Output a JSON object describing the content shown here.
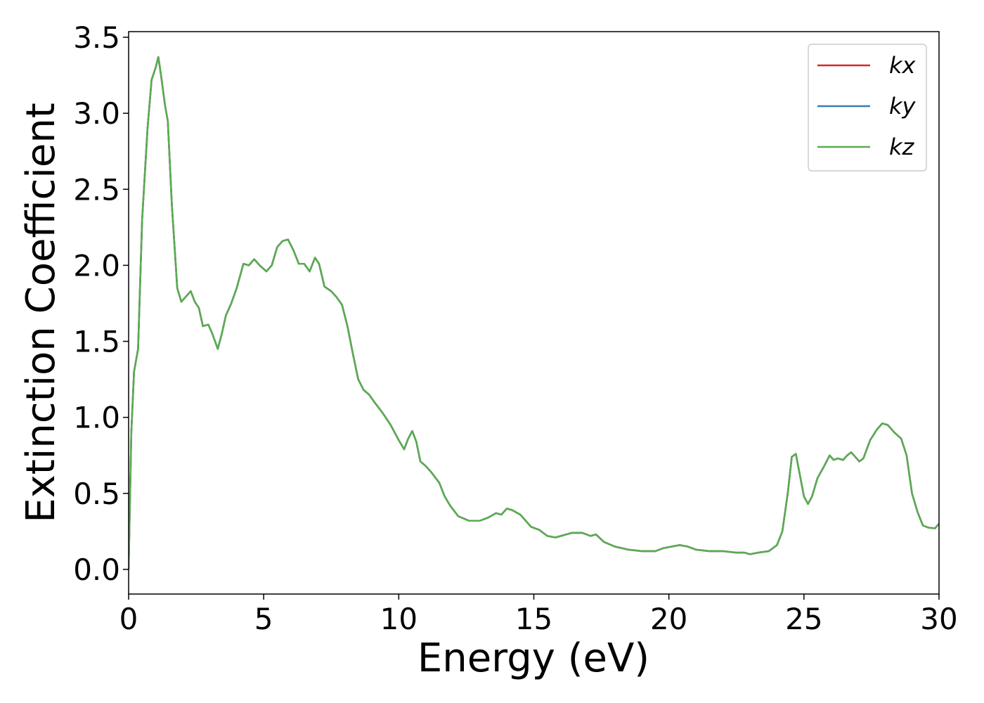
{
  "chart_data": {
    "type": "line",
    "x_label": "Energy (eV)",
    "y_label": "Extinction Coefficient",
    "xlim": [
      0,
      30
    ],
    "ylim": [
      -0.162,
      3.537
    ],
    "xticks": [
      0,
      5,
      10,
      15,
      20,
      25,
      30
    ],
    "yticks": [
      {
        "value": 0,
        "label": "0.0"
      },
      0.5,
      {
        "value": 1,
        "label": "1.0"
      },
      1.5,
      {
        "value": 2,
        "label": "2.0"
      },
      2.5,
      {
        "value": 3,
        "label": "3.0"
      },
      3.5
    ],
    "legend": "upper right",
    "x": [
      0,
      0.1,
      0.2,
      0.35,
      0.5,
      0.7,
      0.85,
      1.0,
      1.1,
      1.2,
      1.35,
      1.45,
      1.6,
      1.8,
      1.95,
      2.1,
      2.3,
      2.45,
      2.6,
      2.75,
      2.95,
      3.1,
      3.3,
      3.45,
      3.6,
      3.8,
      4.0,
      4.25,
      4.45,
      4.65,
      4.85,
      5.1,
      5.3,
      5.5,
      5.7,
      5.9,
      6.1,
      6.3,
      6.5,
      6.7,
      6.9,
      7.05,
      7.25,
      7.5,
      7.7,
      7.9,
      8.1,
      8.3,
      8.5,
      8.7,
      8.9,
      9.1,
      9.4,
      9.7,
      10.0,
      10.2,
      10.35,
      10.5,
      10.65,
      10.8,
      11.0,
      11.2,
      11.5,
      11.7,
      11.9,
      12.2,
      12.6,
      13.0,
      13.3,
      13.6,
      13.8,
      14.0,
      14.2,
      14.5,
      14.9,
      15.2,
      15.5,
      15.8,
      16.0,
      16.4,
      16.8,
      17.1,
      17.3,
      17.6,
      18.0,
      18.5,
      19.0,
      19.5,
      19.8,
      20.1,
      20.4,
      20.7,
      21.0,
      21.5,
      22.0,
      22.5,
      22.8,
      23.0,
      23.3,
      23.7,
      24.0,
      24.2,
      24.4,
      24.55,
      24.7,
      24.85,
      25.0,
      25.15,
      25.3,
      25.5,
      25.75,
      25.95,
      26.1,
      26.25,
      26.45,
      26.6,
      26.75,
      26.9,
      27.05,
      27.2,
      27.45,
      27.7,
      27.9,
      28.1,
      28.35,
      28.6,
      28.8,
      29.0,
      29.2,
      29.4,
      29.6,
      29.85,
      30.0
    ],
    "series": [
      {
        "name": "kx",
        "color": "#d62728",
        "values": [
          0,
          0.9,
          1.3,
          1.45,
          2.3,
          2.9,
          3.22,
          3.3,
          3.37,
          3.25,
          3.05,
          2.95,
          2.4,
          1.85,
          1.76,
          1.79,
          1.83,
          1.76,
          1.72,
          1.6,
          1.61,
          1.55,
          1.45,
          1.55,
          1.67,
          1.75,
          1.85,
          2.01,
          2.0,
          2.04,
          2.0,
          1.96,
          2.0,
          2.12,
          2.16,
          2.17,
          2.1,
          2.01,
          2.01,
          1.96,
          2.05,
          2.01,
          1.86,
          1.83,
          1.79,
          1.74,
          1.6,
          1.42,
          1.25,
          1.18,
          1.15,
          1.1,
          1.03,
          0.95,
          0.85,
          0.79,
          0.86,
          0.91,
          0.84,
          0.71,
          0.68,
          0.64,
          0.57,
          0.48,
          0.42,
          0.35,
          0.32,
          0.32,
          0.34,
          0.37,
          0.36,
          0.4,
          0.39,
          0.36,
          0.28,
          0.26,
          0.22,
          0.21,
          0.22,
          0.24,
          0.24,
          0.22,
          0.23,
          0.18,
          0.15,
          0.13,
          0.12,
          0.12,
          0.14,
          0.15,
          0.16,
          0.15,
          0.13,
          0.12,
          0.12,
          0.11,
          0.11,
          0.1,
          0.11,
          0.12,
          0.16,
          0.25,
          0.5,
          0.74,
          0.76,
          0.62,
          0.48,
          0.43,
          0.48,
          0.6,
          0.68,
          0.75,
          0.72,
          0.73,
          0.72,
          0.75,
          0.77,
          0.74,
          0.71,
          0.73,
          0.85,
          0.92,
          0.96,
          0.95,
          0.9,
          0.86,
          0.75,
          0.5,
          0.38,
          0.29,
          0.275,
          0.27,
          0.3
        ]
      },
      {
        "name": "ky",
        "color": "#3a7bb5",
        "values": [
          0,
          0.9,
          1.3,
          1.45,
          2.3,
          2.9,
          3.22,
          3.3,
          3.37,
          3.25,
          3.05,
          2.95,
          2.4,
          1.85,
          1.76,
          1.79,
          1.83,
          1.76,
          1.72,
          1.6,
          1.61,
          1.55,
          1.45,
          1.55,
          1.67,
          1.75,
          1.85,
          2.01,
          2.0,
          2.04,
          2.0,
          1.96,
          2.0,
          2.12,
          2.16,
          2.17,
          2.1,
          2.01,
          2.01,
          1.96,
          2.05,
          2.01,
          1.86,
          1.83,
          1.79,
          1.74,
          1.6,
          1.42,
          1.25,
          1.18,
          1.15,
          1.1,
          1.03,
          0.95,
          0.85,
          0.79,
          0.86,
          0.91,
          0.84,
          0.71,
          0.68,
          0.64,
          0.57,
          0.48,
          0.42,
          0.35,
          0.32,
          0.32,
          0.34,
          0.37,
          0.36,
          0.4,
          0.39,
          0.36,
          0.28,
          0.26,
          0.22,
          0.21,
          0.22,
          0.24,
          0.24,
          0.22,
          0.23,
          0.18,
          0.15,
          0.13,
          0.12,
          0.12,
          0.14,
          0.15,
          0.16,
          0.15,
          0.13,
          0.12,
          0.12,
          0.11,
          0.11,
          0.1,
          0.11,
          0.12,
          0.16,
          0.25,
          0.5,
          0.74,
          0.76,
          0.62,
          0.48,
          0.43,
          0.48,
          0.6,
          0.68,
          0.75,
          0.72,
          0.73,
          0.72,
          0.75,
          0.77,
          0.74,
          0.71,
          0.73,
          0.85,
          0.92,
          0.96,
          0.95,
          0.9,
          0.86,
          0.75,
          0.5,
          0.38,
          0.29,
          0.275,
          0.27,
          0.3
        ]
      },
      {
        "name": "kz",
        "color": "#5aac4f",
        "values": [
          0,
          0.9,
          1.3,
          1.45,
          2.3,
          2.9,
          3.22,
          3.3,
          3.37,
          3.25,
          3.05,
          2.95,
          2.4,
          1.85,
          1.76,
          1.79,
          1.83,
          1.76,
          1.72,
          1.6,
          1.61,
          1.55,
          1.45,
          1.55,
          1.67,
          1.75,
          1.85,
          2.01,
          2.0,
          2.04,
          2.0,
          1.96,
          2.0,
          2.12,
          2.16,
          2.17,
          2.1,
          2.01,
          2.01,
          1.96,
          2.05,
          2.01,
          1.86,
          1.83,
          1.79,
          1.74,
          1.6,
          1.42,
          1.25,
          1.18,
          1.15,
          1.1,
          1.03,
          0.95,
          0.85,
          0.79,
          0.86,
          0.91,
          0.84,
          0.71,
          0.68,
          0.64,
          0.57,
          0.48,
          0.42,
          0.35,
          0.32,
          0.32,
          0.34,
          0.37,
          0.36,
          0.4,
          0.39,
          0.36,
          0.28,
          0.26,
          0.22,
          0.21,
          0.22,
          0.24,
          0.24,
          0.22,
          0.23,
          0.18,
          0.15,
          0.13,
          0.12,
          0.12,
          0.14,
          0.15,
          0.16,
          0.15,
          0.13,
          0.12,
          0.12,
          0.11,
          0.11,
          0.1,
          0.11,
          0.12,
          0.16,
          0.25,
          0.5,
          0.74,
          0.76,
          0.62,
          0.48,
          0.43,
          0.48,
          0.6,
          0.68,
          0.75,
          0.72,
          0.73,
          0.72,
          0.75,
          0.77,
          0.74,
          0.71,
          0.73,
          0.85,
          0.92,
          0.96,
          0.95,
          0.9,
          0.86,
          0.75,
          0.5,
          0.38,
          0.29,
          0.275,
          0.27,
          0.3
        ]
      }
    ]
  }
}
